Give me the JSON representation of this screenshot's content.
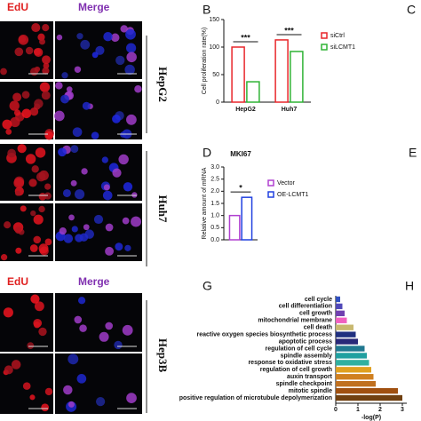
{
  "panels": {
    "letters": [
      "B",
      "C",
      "D",
      "E",
      "G",
      "H"
    ],
    "columns": [
      "EdU",
      "Merge"
    ],
    "cell_lines": [
      "HepG2",
      "Huh7",
      "Hep3B"
    ]
  },
  "chart_data": [
    {
      "type": "bar",
      "categories": [
        "HepG2",
        "Huh7"
      ],
      "y_label": "Cell proliferation rate(%)",
      "ylim": [
        0,
        150
      ],
      "yticks": [
        0,
        50,
        100,
        150
      ],
      "series": [
        {
          "name": "siCtrl",
          "color": "#e8262b",
          "values": [
            100,
            113
          ]
        },
        {
          "name": "siLCMT1",
          "color": "#2fb335",
          "values": [
            37,
            92
          ]
        }
      ],
      "annotations": [
        "***",
        "***"
      ]
    },
    {
      "type": "bar",
      "title": "MKI67",
      "categories": [
        null
      ],
      "y_label": "Relative amount of mRNA",
      "ylim": [
        0,
        3
      ],
      "yticks": [
        {
          "value": 0,
          "label": "0.0"
        },
        {
          "value": 0.5,
          "label": "0.5"
        },
        {
          "value": 1,
          "label": "1.0"
        },
        {
          "value": 1.5,
          "label": "1.5"
        },
        {
          "value": 2,
          "label": "2.0"
        },
        {
          "value": 2.5,
          "label": "2.5"
        },
        {
          "value": 3,
          "label": "3.0"
        }
      ],
      "series": [
        {
          "name": "Vector",
          "color": "#b040d0",
          "values": [
            1.0
          ]
        },
        {
          "name": "OE-LCMT1",
          "color": "#2040e0",
          "values": [
            1.75
          ]
        }
      ],
      "annotations": [
        "*"
      ]
    },
    {
      "type": "barh",
      "x_label": "-log(P)",
      "xlim": [
        0,
        3.2
      ],
      "xticks": [
        0,
        1,
        2,
        3
      ],
      "categories": [
        "cell cycle",
        "cell differentiation",
        "cell growth",
        "mitochondrial membrane",
        "cell death",
        "reactive oxygen species biosynthetic process",
        "apoptotic process",
        "regulation of cell cycle",
        "spindle assembly",
        "response to oxidative stress",
        "regulation of cell growth",
        "auxin transport",
        "spindle checkpoint",
        "mitotic spindle",
        "positive regulation of microtubule depolymerization"
      ],
      "values": [
        0.2,
        0.3,
        0.4,
        0.5,
        0.8,
        0.9,
        1.0,
        1.3,
        1.4,
        1.5,
        1.6,
        1.7,
        1.8,
        2.8,
        3.0
      ],
      "colors": [
        "#3050c0",
        "#5048b8",
        "#7040b0",
        "#f060c0",
        "#c8b870",
        "#203080",
        "#282878",
        "#207890",
        "#20a0a0",
        "#30b0a0",
        "#e0a020",
        "#d08020",
        "#c07020",
        "#a05010",
        "#704010"
      ]
    }
  ]
}
